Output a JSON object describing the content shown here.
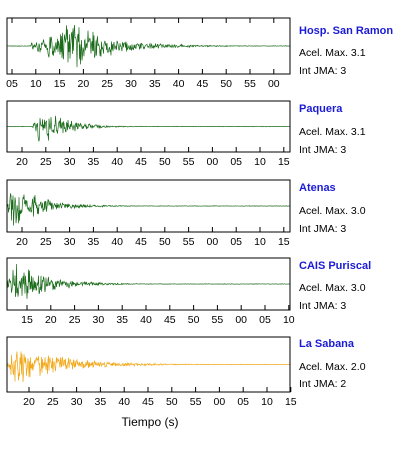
{
  "chart_data": {
    "type": "line",
    "xlabel": "Tiempo (s)",
    "panels": [
      {
        "name": "Hosp. San Ramon",
        "accel": "Acel. Max. 3.1",
        "jma": "Int JMA: 3",
        "color": "#1a6b1a",
        "tick_labels": [
          "05",
          "10",
          "15",
          "20",
          "25",
          "30",
          "35",
          "40",
          "45",
          "50",
          "55",
          "00"
        ],
        "ticks_on_top": true,
        "onset_fraction": 0.085,
        "peak_fraction": 0.23,
        "decay": 0.14,
        "amplitude": 0.9
      },
      {
        "name": "Paquera",
        "accel": "Acel. Max. 3.1",
        "jma": "Int JMA: 3",
        "color": "#1a6b1a",
        "tick_labels": [
          "20",
          "25",
          "30",
          "35",
          "40",
          "45",
          "50",
          "55",
          "00",
          "05",
          "10",
          "15"
        ],
        "ticks_on_top": false,
        "onset_fraction": 0.09,
        "peak_fraction": 0.12,
        "decay": 0.08,
        "amplitude": 0.95
      },
      {
        "name": "Atenas",
        "accel": "Acel. Max. 3.0",
        "jma": "Int JMA: 3",
        "color": "#1a6b1a",
        "tick_labels": [
          "20",
          "25",
          "30",
          "35",
          "40",
          "45",
          "50",
          "55",
          "00",
          "05",
          "10",
          "15"
        ],
        "ticks_on_top": false,
        "onset_fraction": 0.0,
        "peak_fraction": 0.02,
        "decay": 0.1,
        "amplitude": 0.95
      },
      {
        "name": "CAIS Puriscal",
        "accel": "Acel. Max. 3.0",
        "jma": "Int JMA: 3",
        "color": "#1a6b1a",
        "tick_labels": [
          "15",
          "20",
          "25",
          "30",
          "35",
          "40",
          "45",
          "50",
          "55",
          "00",
          "05",
          "10"
        ],
        "ticks_on_top": false,
        "onset_fraction": 0.0,
        "peak_fraction": 0.035,
        "decay": 0.11,
        "amplitude": 0.9
      },
      {
        "name": "La Sabana",
        "accel": "Acel. Max. 2.0",
        "jma": "Int JMA: 2",
        "color": "#f2a818",
        "tick_labels": [
          "20",
          "25",
          "30",
          "35",
          "40",
          "45",
          "50",
          "55",
          "00",
          "05",
          "10",
          "15"
        ],
        "ticks_on_top": false,
        "onset_fraction": 0.0,
        "peak_fraction": 0.03,
        "decay": 0.16,
        "amplitude": 0.85
      }
    ]
  }
}
